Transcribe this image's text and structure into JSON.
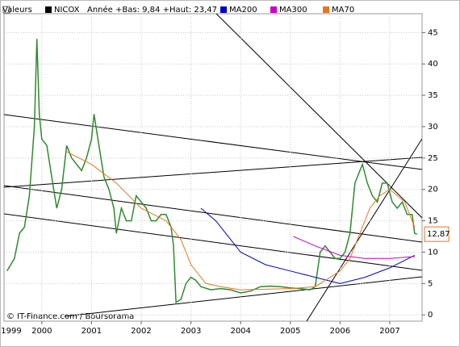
{
  "chart_data": {
    "type": "line",
    "filter_label": "Valeurs",
    "subtitle": "Année +Bas: 9,84 +Haut: 23,47",
    "source": "© IT-Finance.com / Boursorama",
    "last_label": "12,87",
    "xlim": [
      1999.24,
      2007.65
    ],
    "xticks": [
      1999,
      2000,
      2001,
      2002,
      2003,
      2004,
      2005,
      2006,
      2007
    ],
    "ylim": [
      -1,
      48
    ],
    "yticks": [
      0,
      5,
      10,
      15,
      20,
      25,
      30,
      35,
      40,
      45
    ],
    "grid": true,
    "series": [
      {
        "name": "NICOX",
        "color": "#2e8b2e",
        "x": [
          1999.3,
          1999.45,
          1999.55,
          1999.65,
          1999.75,
          1999.85,
          1999.9,
          1999.95,
          2000.0,
          2000.1,
          2000.2,
          2000.3,
          2000.4,
          2000.5,
          2000.6,
          2000.7,
          2000.8,
          2000.9,
          2001.0,
          2001.05,
          2001.15,
          2001.25,
          2001.35,
          2001.45,
          2001.5,
          2001.6,
          2001.7,
          2001.8,
          2001.9,
          2002.0,
          2002.1,
          2002.2,
          2002.3,
          2002.4,
          2002.5,
          2002.6,
          2002.65,
          2002.7,
          2002.8,
          2002.9,
          2003.0,
          2003.1,
          2003.2,
          2003.4,
          2003.6,
          2003.8,
          2004.0,
          2004.2,
          2004.4,
          2004.6,
          2004.8,
          2005.0,
          2005.2,
          2005.4,
          2005.5,
          2005.6,
          2005.7,
          2005.8,
          2005.9,
          2006.0,
          2006.1,
          2006.2,
          2006.3,
          2006.45,
          2006.55,
          2006.65,
          2006.75,
          2006.85,
          2006.95,
          2007.05,
          2007.15,
          2007.25,
          2007.35,
          2007.45,
          2007.5,
          2007.55
        ],
        "values": [
          7,
          9,
          13,
          14,
          19,
          30,
          44,
          32,
          28,
          27,
          22,
          17,
          20,
          27,
          25,
          24,
          23,
          25,
          28,
          32,
          27,
          22,
          20,
          17,
          13,
          17,
          15,
          15,
          19,
          18,
          17,
          15,
          15,
          16,
          16,
          14,
          11,
          2,
          2.5,
          5,
          6,
          5.5,
          4.5,
          4,
          4.2,
          4,
          3.5,
          3.8,
          4.5,
          4.6,
          4.5,
          4.3,
          4.2,
          4,
          4.5,
          10,
          11,
          10,
          9,
          9,
          10,
          13,
          21,
          24,
          21,
          19,
          18,
          21,
          21,
          18,
          17,
          18,
          16,
          16,
          13,
          12.87
        ]
      },
      {
        "name": "MA200",
        "color": "#0000cc",
        "x": [
          2003.2,
          2003.5,
          2003.8,
          2004.0,
          2004.5,
          2005.0,
          2005.5,
          2006.0,
          2006.5,
          2007.0,
          2007.5
        ],
        "values": [
          17,
          15,
          12,
          10,
          8,
          7,
          6,
          5,
          6,
          7.5,
          9.5
        ]
      },
      {
        "name": "MA300",
        "color": "#cc00cc",
        "x": [
          2005.06,
          2005.5,
          2006.0,
          2006.5,
          2007.0,
          2007.5
        ],
        "values": [
          12.5,
          11,
          9.5,
          9,
          9,
          9.3
        ]
      },
      {
        "name": "MA70",
        "color": "#e8761e",
        "x": [
          2000.5,
          2001.0,
          2001.5,
          2002.0,
          2002.5,
          2002.8,
          2003.0,
          2003.3,
          2003.6,
          2004.0,
          2005.0,
          2005.5,
          2005.8,
          2006.0,
          2006.2,
          2006.4,
          2006.6,
          2006.8,
          2007.0,
          2007.3,
          2007.5
        ],
        "values": [
          26,
          24,
          21,
          17,
          15,
          12,
          8,
          5,
          4.5,
          4,
          4.2,
          4.5,
          6,
          7,
          9,
          13,
          17,
          19,
          20,
          18,
          14
        ]
      }
    ]
  }
}
